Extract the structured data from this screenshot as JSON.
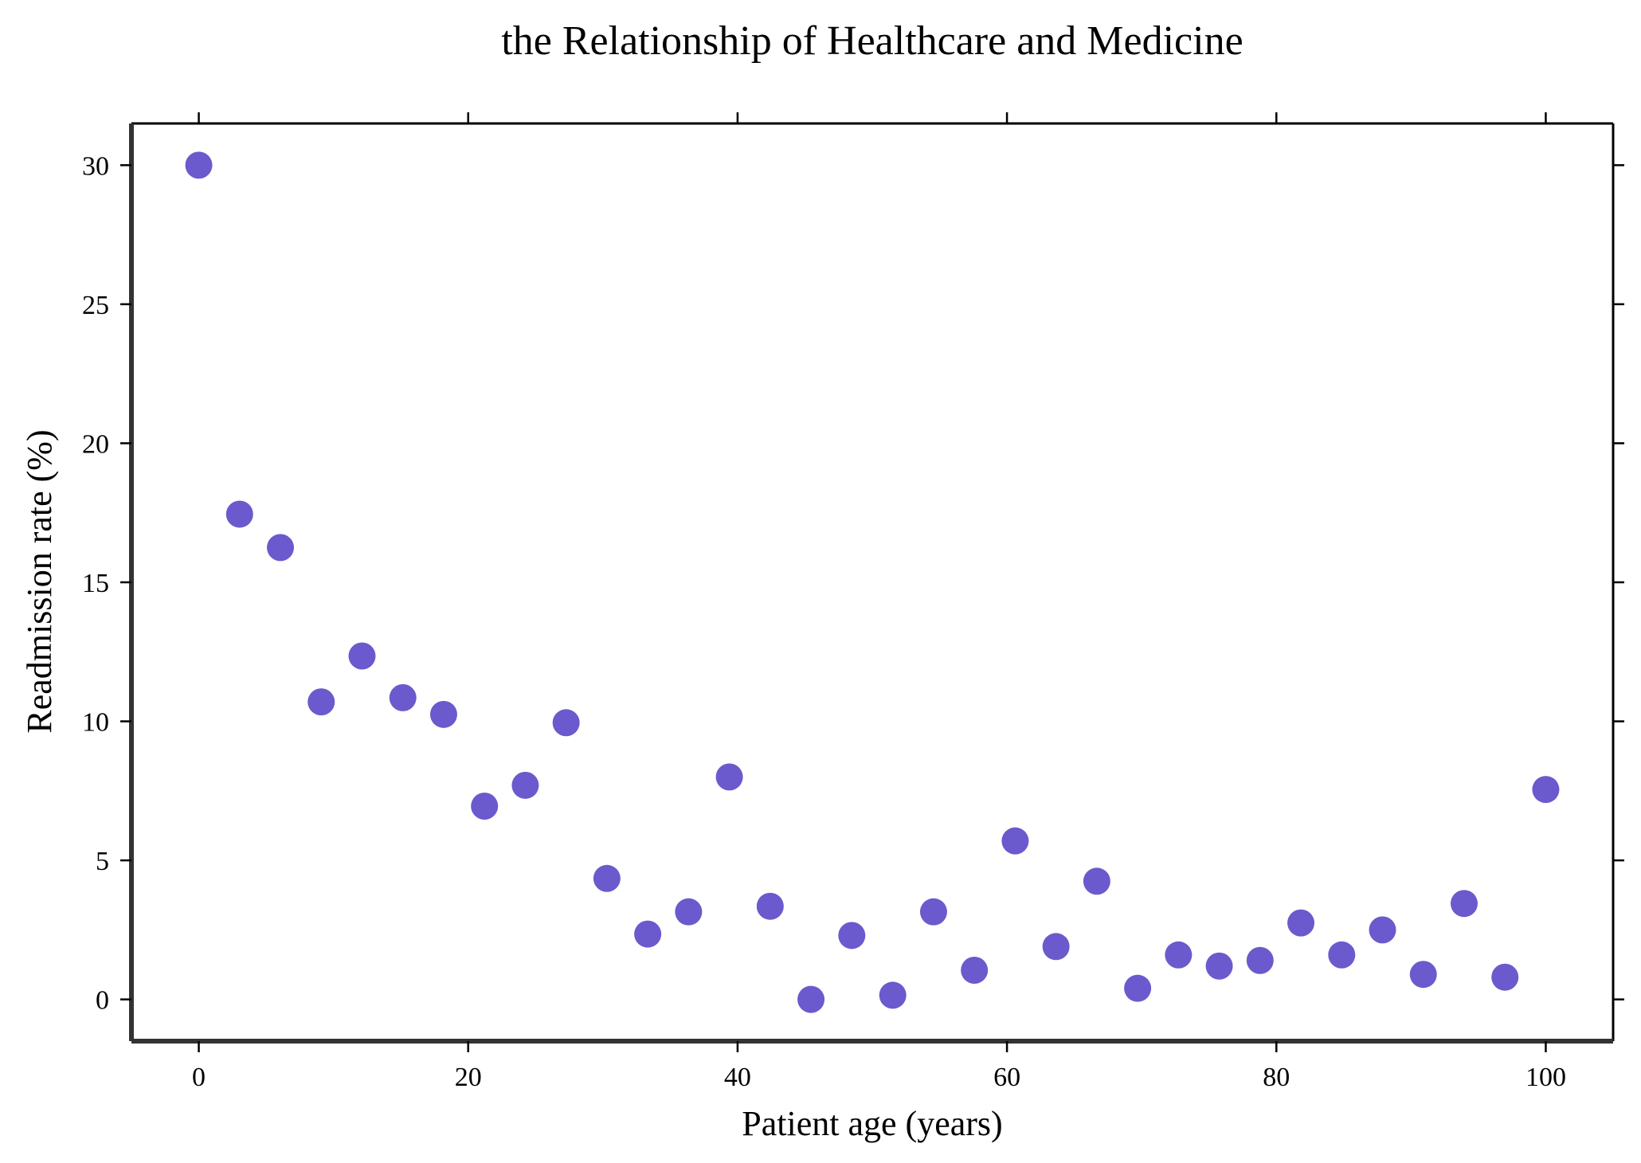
{
  "chart_data": {
    "type": "scatter",
    "title": "the Relationship of Healthcare and Medicine",
    "xlabel": "Patient age (years)",
    "ylabel": "Readmission rate (%)",
    "xlim": [
      -5,
      105
    ],
    "ylim": [
      -1.5,
      31.5
    ],
    "xticks": [
      0,
      20,
      40,
      60,
      80,
      100
    ],
    "yticks": [
      0,
      5,
      10,
      15,
      20,
      25,
      30
    ],
    "grid": false,
    "marker_color": "#6a5acd",
    "series": [
      {
        "x": [
          0.0,
          3.03,
          6.06,
          9.09,
          12.12,
          15.15,
          18.18,
          21.21,
          24.24,
          27.27,
          30.3,
          33.33,
          36.36,
          39.39,
          42.42,
          45.45,
          48.48,
          51.52,
          54.55,
          57.58,
          60.61,
          63.64,
          66.67,
          69.7,
          72.73,
          75.76,
          78.79,
          81.82,
          84.85,
          87.88,
          90.91,
          93.94,
          96.97,
          100.0
        ],
        "y": [
          30.0,
          17.45,
          16.25,
          10.7,
          12.35,
          10.85,
          10.25,
          6.95,
          7.7,
          9.95,
          4.35,
          2.35,
          3.15,
          8.0,
          3.35,
          0.0,
          2.3,
          0.15,
          3.15,
          1.05,
          5.7,
          1.9,
          4.25,
          0.4,
          1.6,
          1.2,
          1.4,
          2.75,
          1.6,
          2.5,
          0.9,
          3.45,
          0.8,
          7.55
        ]
      }
    ]
  }
}
